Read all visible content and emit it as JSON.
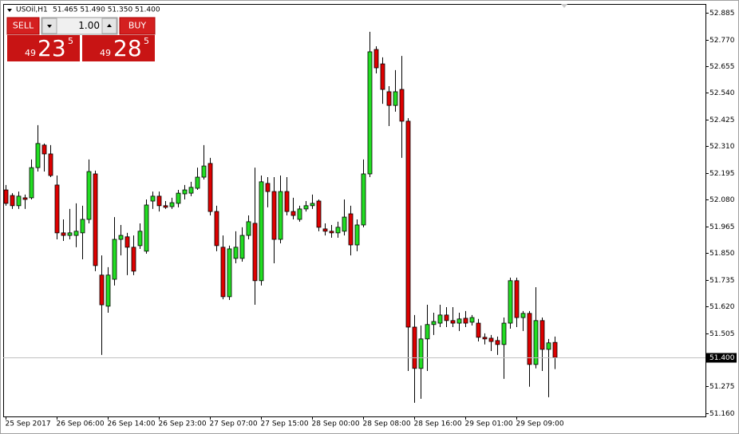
{
  "chart_data": {
    "type": "candlestick",
    "symbol": "USOil,H1",
    "ohlc_header": "51.465 51.490 51.350 51.400",
    "trade_panel": {
      "sell": "SELL",
      "buy": "BUY",
      "volume": "1.00",
      "sell_price": [
        "49",
        "23",
        "5"
      ],
      "buy_price": [
        "49",
        "28",
        "5"
      ]
    },
    "last_price": {
      "value": 51.4,
      "label": "51.400"
    },
    "up_color": "#22dd22",
    "down_color": "#dd0000",
    "categories": [
      "25 Sep 2017",
      null,
      null,
      null,
      null,
      null,
      null,
      null,
      "26 Sep 06:00",
      null,
      null,
      null,
      null,
      null,
      null,
      null,
      "26 Sep 14:00",
      null,
      null,
      null,
      null,
      null,
      null,
      null,
      "26 Sep 23:00",
      null,
      null,
      null,
      null,
      null,
      null,
      null,
      "27 Sep 07:00",
      null,
      null,
      null,
      null,
      null,
      null,
      null,
      "27 Sep 15:00",
      null,
      null,
      null,
      null,
      null,
      null,
      null,
      "28 Sep 00:00",
      null,
      null,
      null,
      null,
      null,
      null,
      null,
      "28 Sep 08:00",
      null,
      null,
      null,
      null,
      null,
      null,
      null,
      "28 Sep 16:00",
      null,
      null,
      null,
      null,
      null,
      null,
      null,
      "29 Sep 01:00",
      null,
      null,
      null,
      null,
      null,
      null,
      null,
      "29 Sep 09:00",
      null,
      null,
      null,
      null,
      null,
      null
    ],
    "open": [
      52.122,
      52.098,
      52.054,
      52.088,
      52.088,
      52.218,
      52.315,
      52.277,
      52.143,
      51.937,
      51.926,
      51.926,
      51.937,
      51.995,
      52.191,
      51.755,
      51.621,
      51.737,
      51.909,
      51.92,
      51.875,
      51.882,
      51.858,
      52.074,
      52.095,
      52.054,
      52.05,
      52.064,
      52.105,
      52.108,
      52.129,
      52.177,
      52.236,
      52.029,
      51.875,
      51.662,
      51.827,
      51.827,
      51.926,
      51.978,
      51.731,
      52.15,
      52.115,
      51.909,
      52.115,
      52.029,
      51.995,
      52.04,
      52.054,
      52.074,
      51.954,
      51.944,
      51.937,
      51.944,
      52.019,
      51.885,
      51.971,
      52.191,
      52.727,
      52.665,
      52.545,
      52.486,
      52.555,
      52.418,
      51.531,
      51.353,
      51.48,
      51.542,
      51.548,
      51.583,
      51.559,
      51.548,
      51.569,
      51.552,
      51.548,
      51.487,
      51.483,
      51.473,
      51.456,
      51.548,
      51.731,
      51.572,
      51.59,
      51.37,
      51.559,
      51.435,
      51.465
    ],
    "high": [
      52.143,
      52.108,
      52.115,
      52.102,
      52.253,
      52.401,
      52.322,
      52.315,
      52.184,
      51.995,
      52.04,
      52.064,
      52.054,
      52.253,
      52.205,
      51.84,
      51.789,
      52.005,
      51.971,
      51.937,
      51.926,
      51.978,
      52.081,
      52.115,
      52.115,
      52.074,
      52.088,
      52.122,
      52.143,
      52.157,
      52.218,
      52.315,
      52.26,
      52.054,
      51.926,
      51.882,
      51.944,
      51.961,
      52.012,
      52.218,
      52.184,
      52.177,
      52.177,
      52.184,
      52.177,
      52.088,
      52.054,
      52.074,
      52.102,
      52.081,
      51.978,
      51.971,
      51.985,
      52.081,
      52.054,
      51.995,
      52.253,
      52.803,
      52.741,
      52.693,
      52.569,
      52.638,
      52.699,
      52.431,
      51.583,
      51.538,
      51.627,
      51.593,
      51.627,
      51.617,
      51.617,
      51.593,
      51.6,
      51.583,
      51.566,
      51.504,
      51.497,
      51.49,
      51.572,
      51.744,
      51.744,
      51.6,
      51.6,
      51.703,
      51.572,
      51.48,
      51.49
    ],
    "low": [
      52.054,
      52.04,
      52.04,
      52.04,
      52.081,
      52.201,
      52.201,
      52.177,
      51.909,
      51.902,
      51.909,
      51.875,
      51.823,
      51.978,
      51.772,
      51.411,
      51.593,
      51.71,
      51.84,
      51.755,
      51.755,
      51.868,
      51.847,
      52.04,
      52.029,
      52.04,
      52.04,
      52.047,
      52.081,
      52.095,
      52.122,
      52.167,
      52.012,
      51.858,
      51.651,
      51.648,
      51.806,
      51.813,
      51.909,
      51.627,
      51.71,
      52.047,
      51.806,
      51.892,
      52.012,
      51.995,
      51.985,
      52.029,
      52.04,
      51.944,
      51.926,
      51.916,
      51.916,
      51.926,
      51.84,
      51.858,
      51.961,
      52.177,
      52.624,
      52.493,
      52.397,
      52.459,
      52.26,
      51.342,
      51.205,
      51.222,
      51.342,
      51.497,
      51.531,
      51.531,
      51.531,
      51.514,
      51.531,
      51.538,
      51.469,
      51.456,
      51.428,
      51.411,
      51.308,
      51.524,
      51.531,
      51.514,
      51.274,
      51.353,
      51.342,
      51.229,
      51.35
    ],
    "close": [
      52.064,
      52.054,
      52.095,
      52.081,
      52.218,
      52.322,
      52.277,
      52.184,
      51.937,
      51.926,
      51.937,
      51.944,
      51.995,
      52.201,
      51.796,
      51.627,
      51.755,
      51.909,
      51.926,
      51.875,
      51.772,
      51.944,
      52.057,
      52.095,
      52.054,
      52.047,
      52.067,
      52.108,
      52.122,
      52.133,
      52.177,
      52.225,
      52.029,
      51.882,
      51.662,
      51.868,
      51.875,
      51.926,
      51.985,
      51.731,
      52.157,
      52.115,
      51.909,
      52.115,
      52.029,
      52.012,
      52.04,
      52.054,
      52.064,
      51.961,
      51.944,
      51.937,
      51.961,
      52.005,
      51.885,
      51.971,
      52.191,
      52.717,
      52.648,
      52.555,
      52.486,
      52.545,
      52.418,
      51.531,
      51.353,
      51.48,
      51.542,
      51.555,
      51.583,
      51.559,
      51.548,
      51.566,
      51.548,
      51.572,
      51.487,
      51.48,
      51.469,
      51.456,
      51.548,
      51.731,
      51.572,
      51.59,
      51.37,
      51.559,
      51.435,
      51.463,
      51.4
    ],
    "ylim": [
      51.146,
      52.923
    ],
    "yticks": [
      52.885,
      {
        "value": 52.77,
        "label": "52.770"
      },
      52.655,
      {
        "value": 52.54,
        "label": "52.540"
      },
      52.425,
      {
        "value": 52.31,
        "label": "52.310"
      },
      52.195,
      {
        "value": 52.08,
        "label": "52.080"
      },
      51.965,
      {
        "value": 51.85,
        "label": "51.850"
      },
      51.735,
      {
        "value": 51.62,
        "label": "51.620"
      },
      51.505,
      51.275,
      {
        "value": 51.16,
        "label": "51.160"
      }
    ]
  }
}
